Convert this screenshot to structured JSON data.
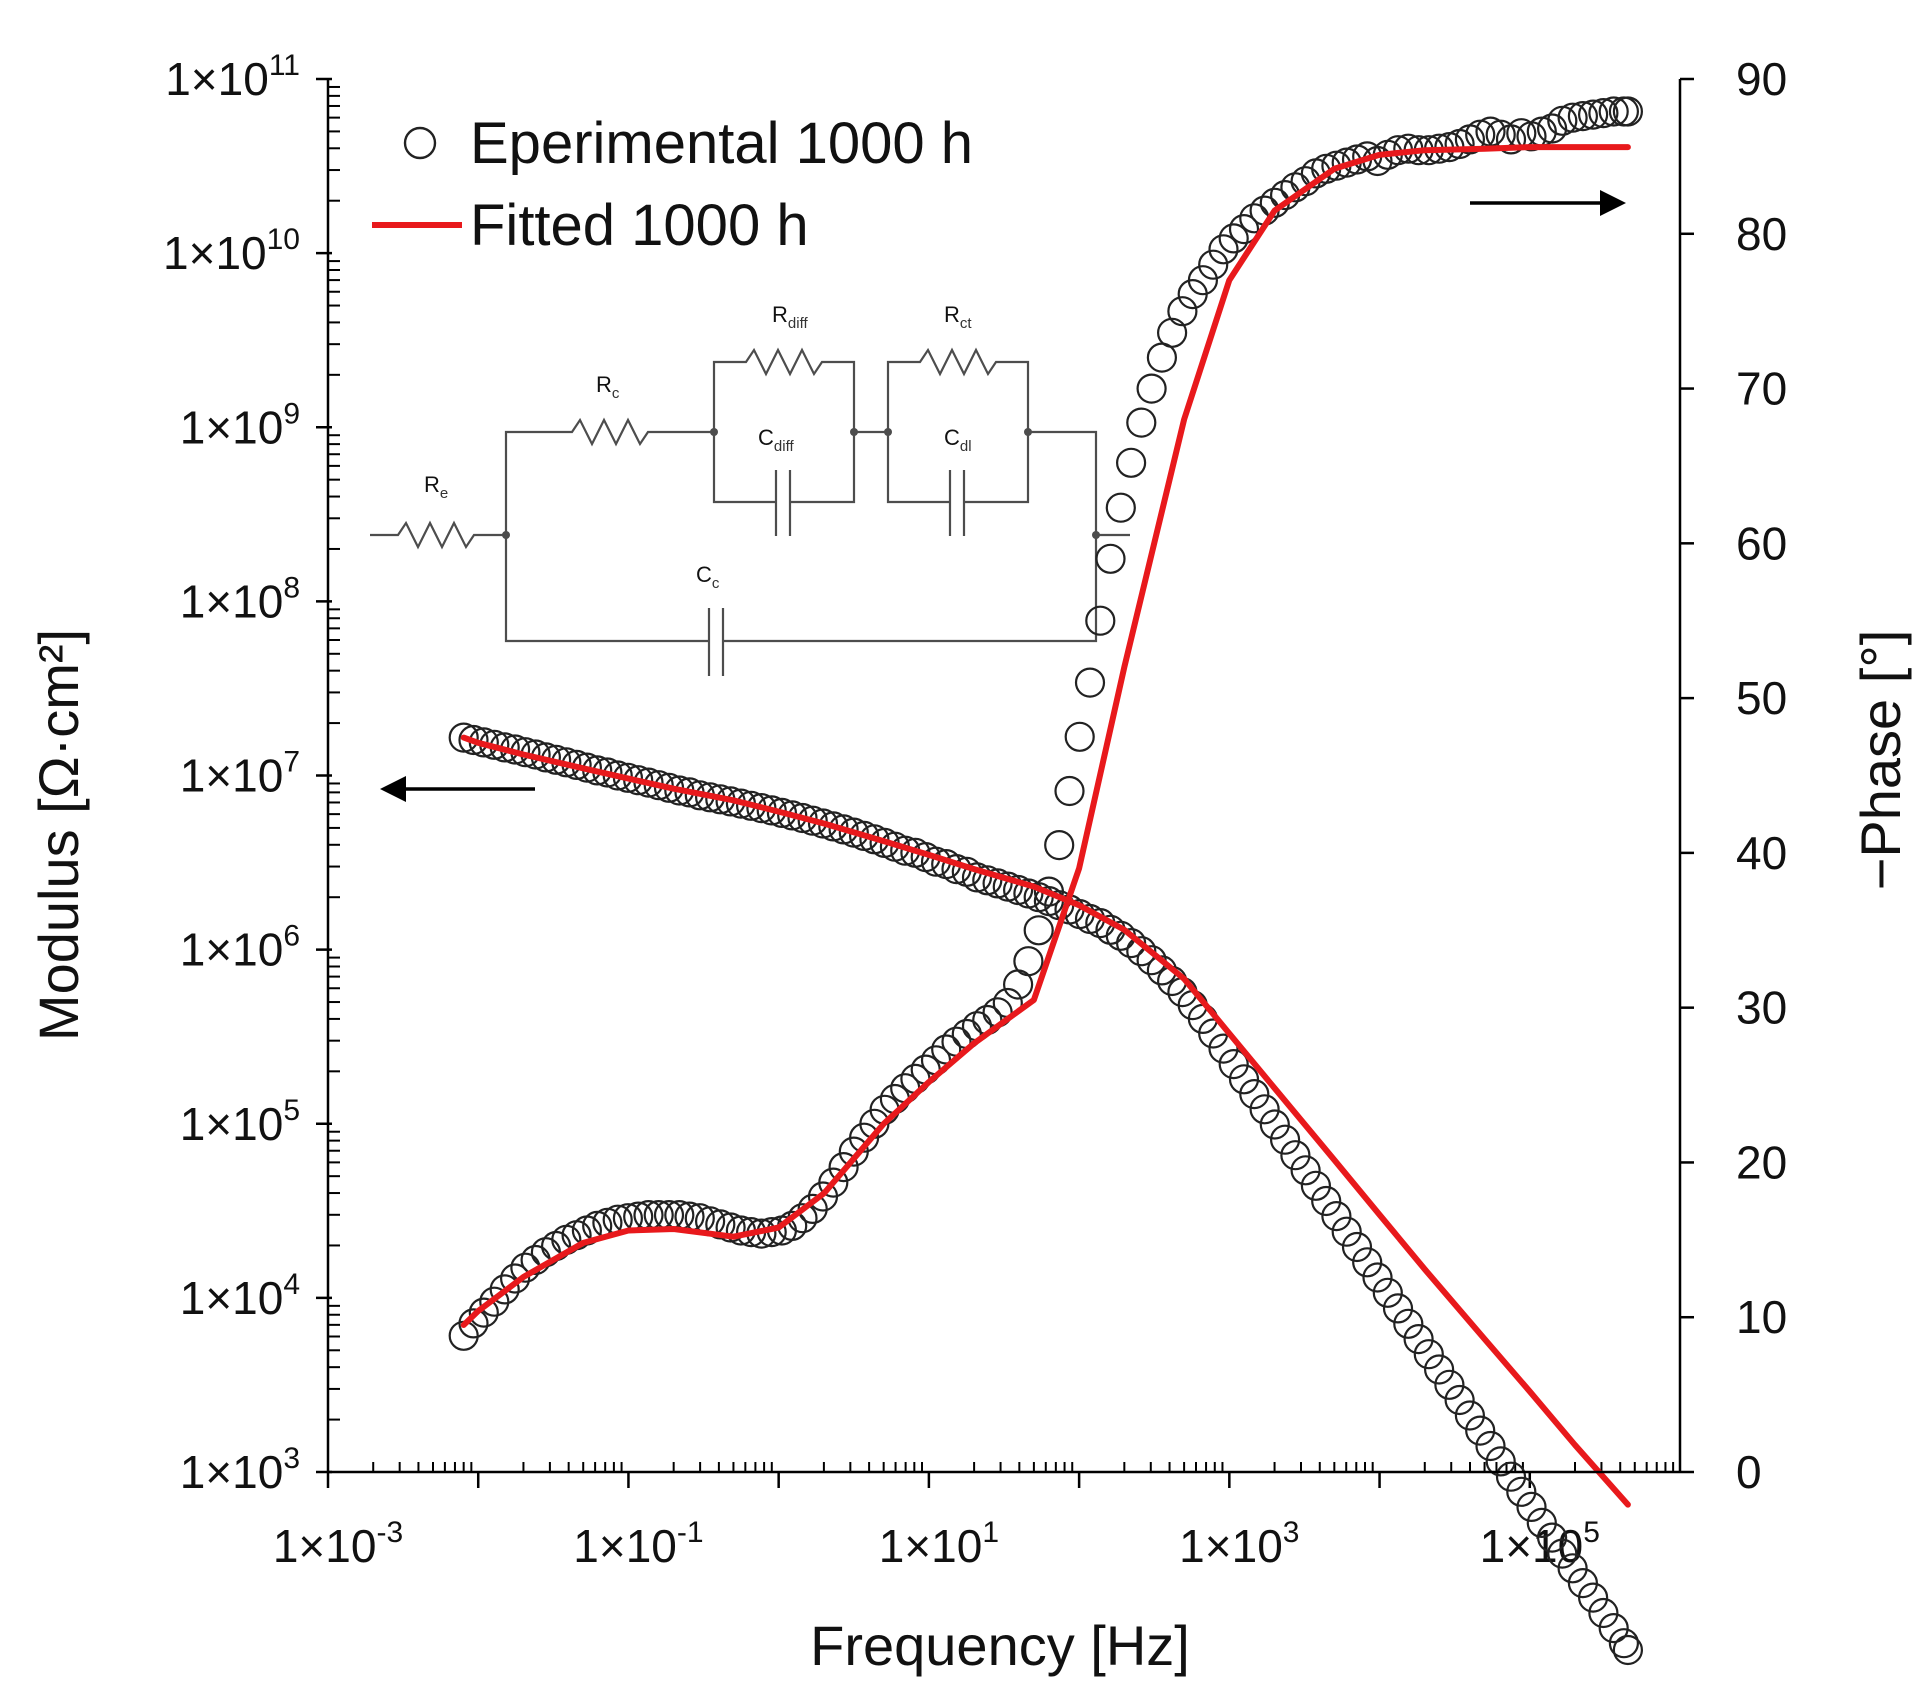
{
  "chart_data": {
    "type": "scatter",
    "title": "",
    "xlabel": "Frequency [Hz]",
    "ylabel_left": "Modulus [Ω·cm²]",
    "ylabel_right": "−Phase [°]",
    "x_scale": "log",
    "xlim": [
      0.001,
      1000000
    ],
    "ylim_left": [
      1000,
      100000000000
    ],
    "ylim_right": [
      0,
      90
    ],
    "x_ticks": [
      {
        "value": 0.001,
        "base": "1×10",
        "exp": "-3"
      },
      {
        "value": 0.1,
        "base": "1×10",
        "exp": "-1"
      },
      {
        "value": 10,
        "base": "1×10",
        "exp": "1"
      },
      {
        "value": 1000,
        "base": "1×10",
        "exp": "3"
      },
      {
        "value": 100000,
        "base": "1×10",
        "exp": "5"
      }
    ],
    "y_left_ticks": [
      {
        "value": 1000,
        "base": "1×10",
        "exp": "3"
      },
      {
        "value": 10000,
        "base": "1×10",
        "exp": "4"
      },
      {
        "value": 100000,
        "base": "1×10",
        "exp": "5"
      },
      {
        "value": 1000000,
        "base": "1×10",
        "exp": "6"
      },
      {
        "value": 10000000,
        "base": "1×10",
        "exp": "7"
      },
      {
        "value": 100000000,
        "base": "1×10",
        "exp": "8"
      },
      {
        "value": 1000000000,
        "base": "1×10",
        "exp": "9"
      },
      {
        "value": 10000000000,
        "base": "1×10",
        "exp": "10"
      },
      {
        "value": 100000000000,
        "base": "1×10",
        "exp": "11"
      }
    ],
    "y_right_ticks": [
      "0",
      "10",
      "20",
      "30",
      "40",
      "50",
      "60",
      "70",
      "80",
      "90"
    ],
    "legend": [
      {
        "label": "Eperimental 1000 h",
        "marker": "open-circle",
        "color": "#222222"
      },
      {
        "label": "Fitted 1000 h",
        "marker": "line",
        "color": "#e8191c"
      }
    ],
    "legend_position": "top-left",
    "arrow_left_axis": "modulus series read on left axis",
    "arrow_right_axis": "phase series read on right axis",
    "series": [
      {
        "name": "Modulus (experimental)",
        "axis": "left",
        "style": "open-circle",
        "x": [
          0.008,
          0.0093,
          0.0109,
          0.0128,
          0.015,
          0.0176,
          0.0206,
          0.0241,
          0.0282,
          0.033,
          0.0386,
          0.0452,
          0.0529,
          0.0619,
          0.0724,
          0.0848,
          0.0992,
          0.1161,
          0.1359,
          0.1591,
          0.1862,
          0.218,
          0.2551,
          0.2986,
          0.3494,
          0.409,
          0.4787,
          0.5603,
          0.6558,
          0.7676,
          0.8984,
          1.0516,
          1.2308,
          1.4406,
          1.6861,
          1.9735,
          2.3099,
          2.7036,
          3.1645,
          3.7039,
          4.3352,
          5.0741,
          5.939,
          6.9513,
          8.1362,
          9.5231,
          11.1463,
          13.0462,
          15.2699,
          17.8727,
          20.9191,
          24.4848,
          28.6583,
          33.5431,
          39.2606,
          45.9526,
          53.7852,
          62.9529,
          73.6833,
          86.2427,
          100.9428,
          118.1485,
          138.2869,
          161.8579,
          189.4467,
          221.7381,
          259.5334,
          303.7708,
          355.5491,
          416.1533,
          487.0873,
          570.1124,
          667.2895,
          781.0303,
          914.1588,
          1069.98,
          1252.36,
          1465.82,
          1715.67,
          2008.11,
          2350.39,
          2751.01,
          3219.93,
          3768.78,
          4411.17,
          5163.06,
          6043.13,
          7073.18,
          8278.82,
          9689.96,
          11341.64,
          13274.79,
          15537.53,
          18185.7,
          21285.67,
          24913.79,
          29160.37,
          34130.59,
          39948.38,
          46757.61,
          54727.43,
          64055.76,
          74974.36,
          87752.18,
          102710.42,
          120219.47,
          140710.87,
          164699.14,
          192768.92,
          225628.67,
          264089.55,
          309104.92,
          361800.0,
          423477.53,
          450000
        ],
        "y": [
          16500000,
          16000000,
          15500000,
          15000000,
          14500000,
          14100000,
          13600000,
          13200000,
          12700000,
          12300000,
          11900000,
          11500000,
          11100000,
          10700000,
          10400000,
          10000000,
          9700000,
          9400000,
          9100000,
          8800000,
          8500000,
          8200000,
          8000000,
          7700000,
          7500000,
          7300000,
          7100000,
          6900000,
          6700000,
          6500000,
          6300000,
          6100000,
          5900000,
          5700000,
          5500000,
          5300000,
          5100000,
          4900000,
          4700000,
          4500000,
          4300000,
          4100000,
          3900000,
          3700000,
          3600000,
          3400000,
          3200000,
          3100000,
          2900000,
          2800000,
          2600000,
          2500000,
          2400000,
          2300000,
          2200000,
          2100000,
          2000000,
          1900000,
          1800000,
          1700000,
          1600000,
          1500000,
          1420000,
          1300000,
          1200000,
          1090000,
          980000,
          870000,
          760000,
          660000,
          570000,
          480000,
          400000,
          330000,
          270000,
          220000,
          180000,
          148000,
          121000,
          99000,
          81000,
          66000,
          54000,
          44000,
          36000,
          29500,
          24000,
          19600,
          16000,
          13100,
          10700,
          8700,
          7100,
          5800,
          4750,
          3880,
          3170,
          2590,
          2110,
          1730,
          1410,
          1150,
          940,
          770,
          630,
          510,
          420,
          340,
          280,
          230,
          190,
          155,
          127,
          104,
          95
        ]
      },
      {
        "name": "Modulus (fitted)",
        "axis": "left",
        "style": "line",
        "x": [
          0.008,
          0.01,
          0.02,
          0.05,
          0.1,
          0.2,
          0.5,
          1,
          2,
          5,
          10,
          20,
          50,
          100,
          200,
          500,
          1000,
          2000,
          5000,
          10000,
          20000,
          50000,
          100000,
          200000,
          450000
        ],
        "y": [
          16500000,
          15400000,
          13200000,
          11000000,
          9600000,
          8400000,
          7200000,
          6200000,
          5300000,
          4200000,
          3500000,
          2900000,
          2300000,
          1800000,
          1300000,
          680000,
          330000,
          160000,
          62000,
          30000,
          14600,
          5800,
          2900,
          1430,
          650
        ]
      },
      {
        "name": "Phase (experimental)",
        "axis": "right",
        "style": "open-circle",
        "x": [
          0.008,
          0.0093,
          0.0109,
          0.0128,
          0.015,
          0.0176,
          0.0206,
          0.0241,
          0.0282,
          0.033,
          0.0386,
          0.0452,
          0.0529,
          0.0619,
          0.0724,
          0.0848,
          0.0992,
          0.1161,
          0.1359,
          0.1591,
          0.1862,
          0.218,
          0.2551,
          0.2986,
          0.3494,
          0.409,
          0.4787,
          0.5603,
          0.6558,
          0.7676,
          0.8984,
          1.0516,
          1.2308,
          1.4406,
          1.6861,
          1.9735,
          2.3099,
          2.7036,
          3.1645,
          3.7039,
          4.3352,
          5.0741,
          5.939,
          6.9513,
          8.1362,
          9.5231,
          11.1463,
          13.0462,
          15.2699,
          17.8727,
          20.9191,
          24.4848,
          28.6583,
          33.5431,
          39.2606,
          45.9526,
          53.7852,
          62.9529,
          73.6833,
          86.2427,
          100.9428,
          118.1485,
          138.2869,
          161.8579,
          189.4467,
          221.7381,
          259.5334,
          303.7708,
          355.5491,
          416.1533,
          487.0873,
          570.1124,
          667.2895,
          781.0303,
          914.1588,
          1069.98,
          1252.36,
          1465.82,
          1715.67,
          2008.11,
          2350.39,
          2751.01,
          3219.93,
          3768.78,
          4411.17,
          5163.06,
          6043.13,
          7073.18,
          8278.82,
          9689.96,
          11341.64,
          13274.79,
          15537.53,
          18185.7,
          21285.67,
          24913.79,
          29160.37,
          34130.59,
          39948.38,
          46757.61,
          54727.43,
          64055.76,
          74974.36,
          87752.18,
          102710.42,
          120219.47,
          140710.87,
          164699.14,
          192768.92,
          225628.67,
          264089.55,
          309104.92,
          361800.0,
          423477.53,
          450000
        ],
        "y": [
          8.8,
          9.6,
          10.3,
          11.0,
          11.8,
          12.5,
          13.2,
          13.7,
          14.2,
          14.6,
          15.0,
          15.3,
          15.6,
          15.9,
          16.1,
          16.3,
          16.4,
          16.5,
          16.6,
          16.6,
          16.6,
          16.6,
          16.5,
          16.4,
          16.2,
          16.0,
          15.8,
          15.6,
          15.5,
          15.4,
          15.5,
          15.6,
          15.9,
          16.4,
          17.0,
          17.8,
          18.7,
          19.7,
          20.7,
          21.6,
          22.5,
          23.4,
          24.1,
          24.8,
          25.4,
          26.0,
          26.6,
          27.3,
          27.8,
          28.3,
          28.8,
          29.2,
          29.7,
          30.3,
          31.5,
          33.0,
          35.0,
          37.5,
          40.5,
          44.0,
          47.5,
          51.0,
          55.0,
          59.0,
          62.3,
          65.2,
          67.8,
          70.0,
          72.0,
          73.6,
          75.0,
          76.1,
          77.0,
          78.0,
          79.0,
          79.7,
          80.3,
          81.0,
          81.5,
          82.0,
          82.5,
          83.0,
          83.4,
          83.9,
          84.2,
          84.4,
          84.6,
          84.8,
          85.0,
          84.7,
          85.1,
          85.4,
          85.5,
          85.4,
          85.4,
          85.5,
          85.6,
          85.8,
          86.1,
          86.4,
          86.6,
          86.4,
          86.1,
          86.5,
          86.3,
          86.6,
          86.8,
          87.3,
          87.5,
          87.6,
          87.7,
          87.8,
          87.9,
          87.9,
          87.9
        ]
      },
      {
        "name": "Phase (fitted)",
        "axis": "right",
        "style": "line",
        "x": [
          0.008,
          0.01,
          0.02,
          0.05,
          0.1,
          0.2,
          0.5,
          1,
          2,
          5,
          10,
          20,
          50,
          100,
          200,
          500,
          1000,
          2000,
          5000,
          10000,
          20000,
          50000,
          100000,
          200000,
          450000
        ],
        "y": [
          9.5,
          10.4,
          12.6,
          14.8,
          15.6,
          15.7,
          15.2,
          15.8,
          18.0,
          22.5,
          25.2,
          27.7,
          30.5,
          39.0,
          52.0,
          68.0,
          77.0,
          81.5,
          84.2,
          85.1,
          85.4,
          85.5,
          85.6,
          85.6,
          85.6
        ]
      }
    ]
  },
  "circuit": {
    "components": [
      {
        "base": "R",
        "sub": "e"
      },
      {
        "base": "R",
        "sub": "c"
      },
      {
        "base": "R",
        "sub": "diff"
      },
      {
        "base": "C",
        "sub": "diff"
      },
      {
        "base": "R",
        "sub": "ct"
      },
      {
        "base": "C",
        "sub": "dl"
      },
      {
        "base": "C",
        "sub": "c"
      }
    ]
  }
}
